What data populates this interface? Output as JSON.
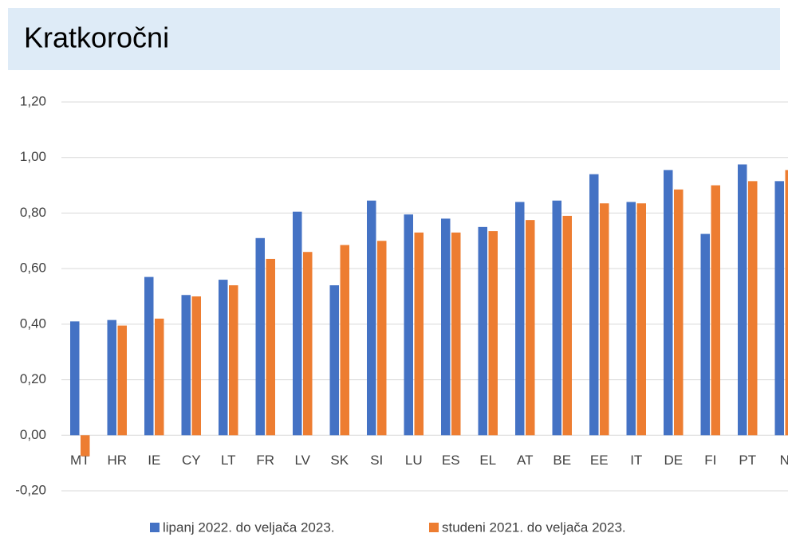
{
  "chart_data": {
    "type": "bar",
    "title": "Kratkoročni",
    "categories": [
      "MT",
      "HR",
      "IE",
      "CY",
      "LT",
      "FR",
      "LV",
      "SK",
      "SI",
      "LU",
      "ES",
      "EL",
      "AT",
      "BE",
      "EE",
      "IT",
      "DE",
      "FI",
      "PT",
      "N"
    ],
    "series": [
      {
        "name": "lipanj 2022. do veljača 2023.",
        "color": "#4472c4",
        "values": [
          0.41,
          0.415,
          0.57,
          0.505,
          0.56,
          0.71,
          0.805,
          0.54,
          0.845,
          0.795,
          0.78,
          0.75,
          0.84,
          0.845,
          0.94,
          0.84,
          0.955,
          0.725,
          0.975,
          0.915
        ]
      },
      {
        "name": "studeni 2021. do veljača 2023.",
        "color": "#ed7d31",
        "values": [
          -0.075,
          0.395,
          0.42,
          0.5,
          0.54,
          0.635,
          0.66,
          0.685,
          0.7,
          0.73,
          0.73,
          0.735,
          0.775,
          0.79,
          0.835,
          0.835,
          0.885,
          0.9,
          0.915,
          0.955
        ]
      }
    ],
    "ylim": [
      -0.2,
      1.2
    ],
    "yticks": [
      {
        "value": -0.2,
        "label": "-0,20"
      },
      {
        "value": 0,
        "label": "0,00"
      },
      {
        "value": 0.2,
        "label": "0,20"
      },
      {
        "value": 0.4,
        "label": "0,40"
      },
      {
        "value": 0.6,
        "label": "0,60"
      },
      {
        "value": 0.8,
        "label": "0,80"
      },
      {
        "value": 1,
        "label": "1,00"
      },
      {
        "value": 1.2,
        "label": "1,20"
      }
    ],
    "grid": true
  }
}
